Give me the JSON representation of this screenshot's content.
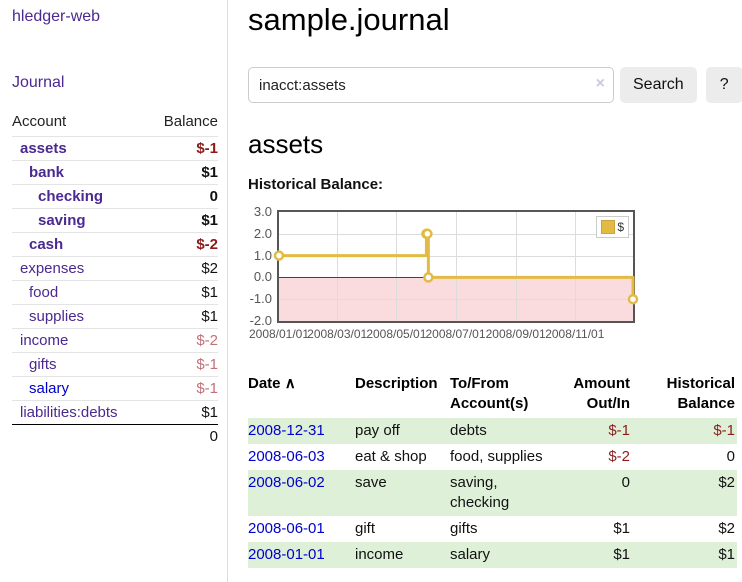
{
  "app": {
    "brand": "hledger-web",
    "nav": {
      "journal": "Journal"
    }
  },
  "sidebar": {
    "columns": {
      "account": "Account",
      "balance": "Balance"
    },
    "accounts": [
      {
        "name": "assets",
        "balance": "$-1",
        "level": 0,
        "bold": true,
        "balance_style": "neg-strong"
      },
      {
        "name": "bank",
        "balance": "$1",
        "level": 1,
        "bold": true,
        "balance_style": "pos"
      },
      {
        "name": "checking",
        "balance": "0",
        "level": 2,
        "bold": true,
        "balance_style": "pos"
      },
      {
        "name": "saving",
        "balance": "$1",
        "level": 2,
        "bold": true,
        "balance_style": "pos"
      },
      {
        "name": "cash",
        "balance": "$-2",
        "level": 1,
        "bold": true,
        "balance_style": "neg-strong"
      },
      {
        "name": "expenses",
        "balance": "$2",
        "level": 0,
        "bold": false,
        "balance_style": "pos"
      },
      {
        "name": "food",
        "balance": "$1",
        "level": 1,
        "bold": false,
        "balance_style": "pos"
      },
      {
        "name": "supplies",
        "balance": "$1",
        "level": 1,
        "bold": false,
        "balance_style": "pos"
      },
      {
        "name": "income",
        "balance": "$-2",
        "level": 0,
        "bold": false,
        "balance_style": "neg-soft"
      },
      {
        "name": "gifts",
        "balance": "$-1",
        "level": 1,
        "bold": false,
        "balance_style": "neg-soft"
      },
      {
        "name": "salary",
        "balance": "$-1",
        "level": 1,
        "bold": false,
        "balance_style": "neg-soft",
        "link_color": "blue"
      },
      {
        "name": "liabilities:debts",
        "balance": "$1",
        "level": 0,
        "bold": false,
        "balance_style": "pos"
      }
    ],
    "total": "0"
  },
  "main": {
    "title": "sample.journal",
    "search": {
      "value": "inacct:assets",
      "clear_icon": "×",
      "submit_label": "Search",
      "help_label": "?"
    },
    "account_heading": "assets",
    "chart_heading": "Historical Balance:"
  },
  "chart_data": {
    "type": "line",
    "steps": true,
    "title": "Historical Balance",
    "x_range": [
      "2008-01-01",
      "2008-12-31"
    ],
    "y_range": [
      -2,
      3
    ],
    "y_ticks": [
      "3.0",
      "2.0",
      "1.0",
      "0.0",
      "-1.0",
      "-2.0"
    ],
    "x_ticks": [
      {
        "label": "2008/01/01",
        "date": "2008-01-01"
      },
      {
        "label": "2008/03/01",
        "date": "2008-03-01"
      },
      {
        "label": "2008/05/01",
        "date": "2008-05-01"
      },
      {
        "label": "2008/07/01",
        "date": "2008-07-01"
      },
      {
        "label": "2008/09/01",
        "date": "2008-09-01"
      },
      {
        "label": "2008/11/01",
        "date": "2008-11-01"
      }
    ],
    "series": [
      {
        "name": "$",
        "color": "#e3bb44",
        "points": [
          {
            "date": "2008-01-01",
            "value": 1
          },
          {
            "date": "2008-06-01",
            "value": 2
          },
          {
            "date": "2008-06-02",
            "value": 2
          },
          {
            "date": "2008-06-03",
            "value": 0
          },
          {
            "date": "2008-12-31",
            "value": -1
          }
        ]
      }
    ],
    "grid": true,
    "legend_position": "top-right",
    "legend": {
      "label": "$"
    },
    "negative_region_color": "#fadcdf",
    "zero_line_color": "#8b2424"
  },
  "register": {
    "columns": [
      {
        "label": "Date",
        "sort_indicator": "∧"
      },
      {
        "label": "Description"
      },
      {
        "label": "To/From Account(s)"
      },
      {
        "label": "Amount Out/In"
      },
      {
        "label": "Historical Balance"
      }
    ],
    "rows": [
      {
        "date": "2008-12-31",
        "description": "pay off",
        "accounts": "debts",
        "amount": "$-1",
        "amount_negative": true,
        "balance": "$-1",
        "balance_negative": true,
        "highlighted": true
      },
      {
        "date": "2008-06-03",
        "description": "eat & shop",
        "accounts": "food, supplies",
        "amount": "$-2",
        "amount_negative": true,
        "balance": "0",
        "balance_negative": false,
        "highlighted": false
      },
      {
        "date": "2008-06-02",
        "description": "save",
        "accounts": "saving, checking",
        "amount": "0",
        "amount_negative": false,
        "balance": "$2",
        "balance_negative": false,
        "highlighted": true
      },
      {
        "date": "2008-06-01",
        "description": "gift",
        "accounts": "gifts",
        "amount": "$1",
        "amount_negative": false,
        "balance": "$2",
        "balance_negative": false,
        "highlighted": false
      },
      {
        "date": "2008-01-01",
        "description": "income",
        "accounts": "salary",
        "amount": "$1",
        "amount_negative": false,
        "balance": "$1",
        "balance_negative": false,
        "highlighted": true
      }
    ],
    "row_highlight_color": "#dff0d8"
  },
  "colors": {
    "link_purple": "#4b2991",
    "link_blue": "#0000cc",
    "negative_strong": "#8b1a1a",
    "negative_soft": "#c17179",
    "register_negative": "#8b1f1f",
    "divider": "#dddddd"
  }
}
